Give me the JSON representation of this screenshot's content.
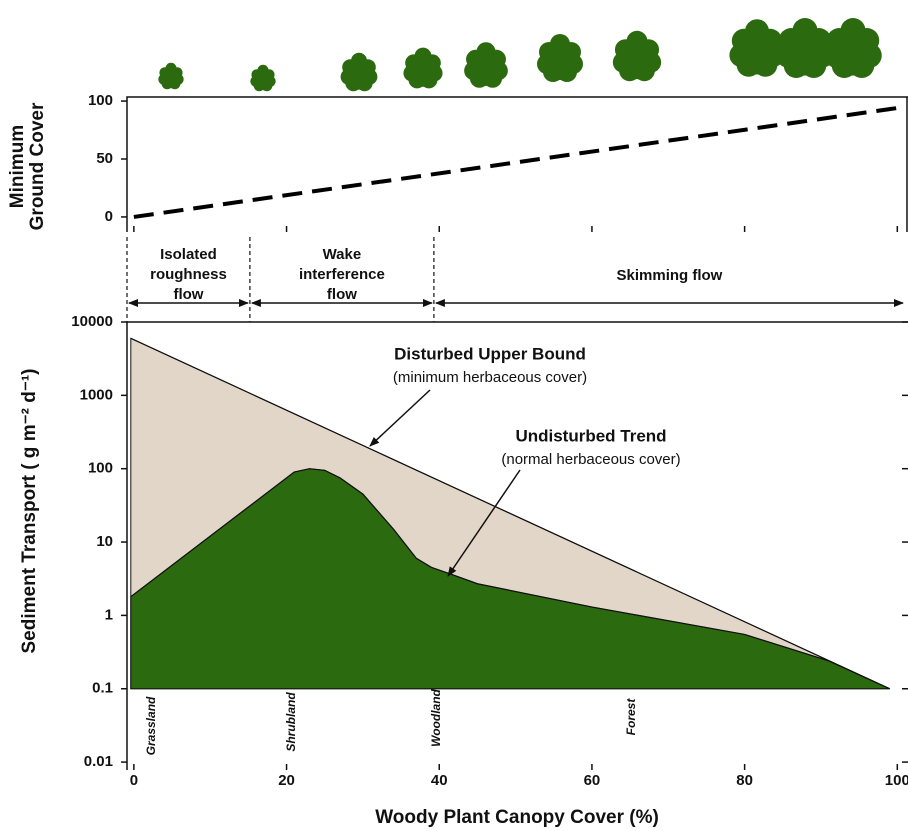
{
  "chart_data": [
    {
      "type": "line",
      "ylabel": [
        "Minimum",
        "Ground Cover"
      ],
      "x": [
        0,
        100
      ],
      "values": [
        0,
        94
      ],
      "color": "#000000",
      "dashed": true,
      "xlim": [
        -0.9,
        101.4
      ],
      "ylim": [
        -13,
        103.5
      ],
      "xticks": [
        0,
        20,
        40,
        60,
        80,
        100
      ],
      "yticks": [
        0,
        50,
        100
      ]
    },
    {
      "type": "area",
      "ylabel": "Sediment Transport ( g m⁻² d⁻¹)",
      "xlabel": "Woody Plant Canopy Cover (%)",
      "log_y": true,
      "xlim": [
        -0.9,
        101.4
      ],
      "ylim": [
        0.0078,
        10000
      ],
      "xticks": [
        0,
        20,
        40,
        60,
        80,
        100
      ],
      "yticks": [
        0.01,
        0.1,
        1,
        10,
        100,
        1000,
        10000
      ],
      "series": [
        {
          "name": "Disturbed Upper Bound",
          "note": "(minimum herbaceous cover)",
          "color": "#e2d6c9",
          "x": [
            -0.4,
            99
          ],
          "values": [
            6000,
            0.1
          ]
        },
        {
          "name": "Undisturbed Trend",
          "note": "(normal herbaceous cover)",
          "color": "#2c6a10",
          "x": [
            -0.4,
            21,
            23,
            25,
            27,
            30,
            34,
            37,
            39,
            42,
            45,
            60,
            80,
            91,
            99
          ],
          "values": [
            1.8,
            90,
            100,
            95,
            75,
            45,
            15,
            6,
            4.5,
            3.5,
            2.7,
            1.3,
            0.55,
            0.24,
            0.1
          ]
        }
      ],
      "regimes": [
        {
          "label": [
            "Isolated",
            "roughness",
            "flow"
          ],
          "start": -0.9,
          "end": 15.2
        },
        {
          "label": [
            "Wake",
            "interference",
            "flow"
          ],
          "start": 15.2,
          "end": 39.3
        },
        {
          "label": [
            "Skimming  flow"
          ],
          "start": 39.3,
          "end": 101.0
        }
      ],
      "vegetation": [
        "Grassland",
        "Shrubland",
        "Woodland",
        "Forest"
      ]
    }
  ]
}
